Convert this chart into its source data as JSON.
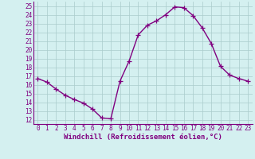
{
  "x": [
    0,
    1,
    2,
    3,
    4,
    5,
    6,
    7,
    8,
    9,
    10,
    11,
    12,
    13,
    14,
    15,
    16,
    17,
    18,
    19,
    20,
    21,
    22,
    23
  ],
  "y": [
    16.7,
    16.3,
    15.5,
    14.8,
    14.3,
    13.9,
    13.2,
    12.2,
    12.1,
    16.4,
    18.7,
    21.7,
    22.8,
    23.3,
    24.0,
    24.9,
    24.8,
    23.9,
    22.5,
    20.7,
    18.1,
    17.1,
    16.7,
    16.4
  ],
  "line_color": "#800080",
  "marker": "+",
  "marker_size": 4,
  "linewidth": 1.0,
  "xlabel": "Windchill (Refroidissement éolien,°C)",
  "xlabel_fontsize": 6.5,
  "ylabel_ticks": [
    12,
    13,
    14,
    15,
    16,
    17,
    18,
    19,
    20,
    21,
    22,
    23,
    24,
    25
  ],
  "xlim": [
    -0.5,
    23.5
  ],
  "ylim": [
    11.5,
    25.5
  ],
  "bg_color": "#d4f0f0",
  "grid_color": "#aacccc",
  "tick_fontsize": 5.5,
  "xlabel_color": "#800080"
}
